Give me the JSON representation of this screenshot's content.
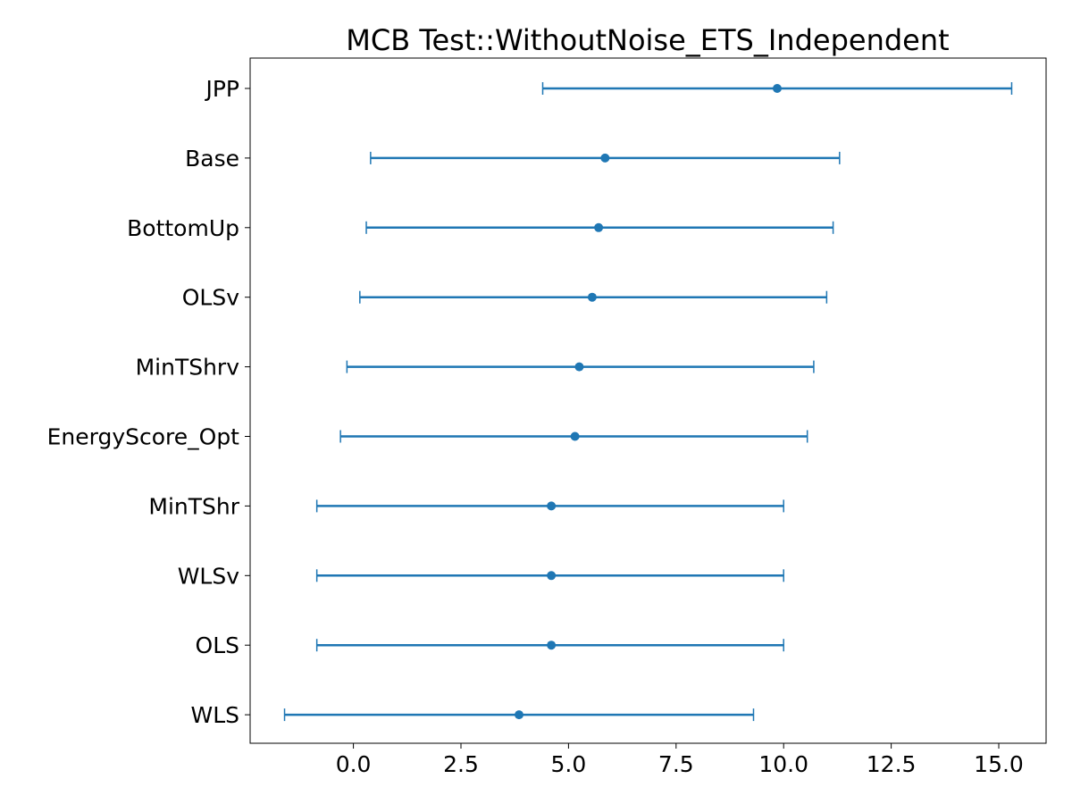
{
  "chart_data": {
    "type": "errorbar",
    "title": "MCB Test::WithoutNoise_ETS_Independent",
    "xlabel": "",
    "ylabel": "",
    "xlim": [
      -2.4,
      16.1
    ],
    "xticks": [
      0.0,
      2.5,
      5.0,
      7.5,
      10.0,
      12.5,
      15.0
    ],
    "xtick_labels": [
      "0.0",
      "2.5",
      "5.0",
      "7.5",
      "10.0",
      "12.5",
      "15.0"
    ],
    "grid": false,
    "color": "#1f77b4",
    "series": [
      {
        "method": "JPP",
        "mean": 9.85,
        "lower": 4.4,
        "upper": 15.3
      },
      {
        "method": "Base",
        "mean": 5.85,
        "lower": 0.4,
        "upper": 11.3
      },
      {
        "method": "BottomUp",
        "mean": 5.7,
        "lower": 0.3,
        "upper": 11.15
      },
      {
        "method": "OLSv",
        "mean": 5.55,
        "lower": 0.15,
        "upper": 11.0
      },
      {
        "method": "MinTShrv",
        "mean": 5.25,
        "lower": -0.15,
        "upper": 10.7
      },
      {
        "method": "EnergyScore_Opt",
        "mean": 5.15,
        "lower": -0.3,
        "upper": 10.55
      },
      {
        "method": "MinTShr",
        "mean": 4.6,
        "lower": -0.85,
        "upper": 10.0
      },
      {
        "method": "WLSv",
        "mean": 4.6,
        "lower": -0.85,
        "upper": 10.0
      },
      {
        "method": "OLS",
        "mean": 4.6,
        "lower": -0.85,
        "upper": 10.0
      },
      {
        "method": "WLS",
        "mean": 3.85,
        "lower": -1.6,
        "upper": 9.3
      }
    ]
  }
}
